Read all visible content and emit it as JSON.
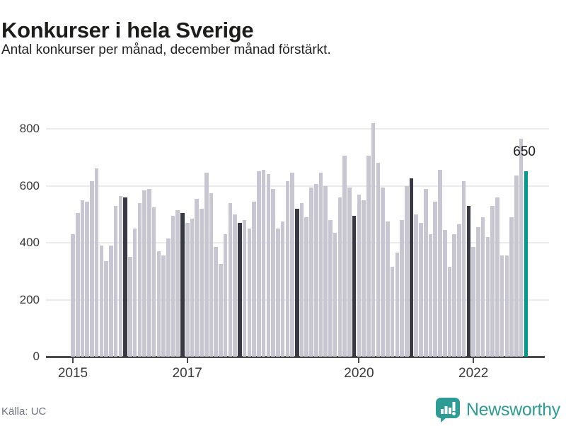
{
  "header": {
    "title": "Konkurser i hela Sverige",
    "subtitle": "Antal konkurser per månad, december månad förstärkt."
  },
  "annotation": {
    "last_value_label": "650"
  },
  "footer": {
    "source": "Källa: UC",
    "brand": "Newsworthy"
  },
  "icons": {
    "brand_logo": "bar-chart-speech-bubble-icon"
  },
  "colors": {
    "bar_default": "#c9c6d3",
    "bar_december": "#393845",
    "bar_highlight": "#009b8e",
    "grid": "#ebebeb",
    "axis": "#4a4a4a",
    "brand_teal": "#2d9c94",
    "text_dark": "#1c1c1a",
    "text_muted": "#6d7380"
  },
  "chart_data": {
    "type": "bar",
    "title": "Konkurser i hela Sverige",
    "subtitle": "Antal konkurser per månad, december månad förstärkt.",
    "frequency": "monthly",
    "start": "2015-01",
    "end": "2022-12",
    "ylim": [
      0,
      860
    ],
    "yticks": [
      0,
      200,
      400,
      600,
      800
    ],
    "xticks_years": [
      2015,
      2017,
      2020,
      2022
    ],
    "grid": "horizontal",
    "legend": "none",
    "december_emphasized": true,
    "last_bar": {
      "month": "2022-12",
      "value": 650,
      "label": "650",
      "highlighted": true
    },
    "series_name": "Antal konkurser",
    "values_by_year": {
      "2015": [
        430,
        505,
        550,
        545,
        615,
        660,
        390,
        335,
        390,
        530,
        565,
        560
      ],
      "2016": [
        350,
        450,
        540,
        585,
        590,
        525,
        370,
        355,
        415,
        495,
        515,
        505
      ],
      "2017": [
        470,
        485,
        555,
        520,
        645,
        575,
        385,
        325,
        430,
        540,
        500,
        470
      ],
      "2018": [
        480,
        450,
        545,
        650,
        655,
        640,
        590,
        450,
        475,
        615,
        645,
        520
      ],
      "2019": [
        540,
        490,
        595,
        605,
        645,
        600,
        480,
        435,
        560,
        705,
        595,
        495
      ],
      "2020": [
        570,
        550,
        705,
        820,
        680,
        595,
        475,
        315,
        365,
        480,
        600,
        625
      ],
      "2021": [
        500,
        470,
        590,
        430,
        545,
        655,
        445,
        315,
        430,
        465,
        615,
        530
      ],
      "2022": [
        385,
        455,
        490,
        420,
        530,
        560,
        355,
        355,
        490,
        635,
        765,
        650
      ]
    }
  }
}
